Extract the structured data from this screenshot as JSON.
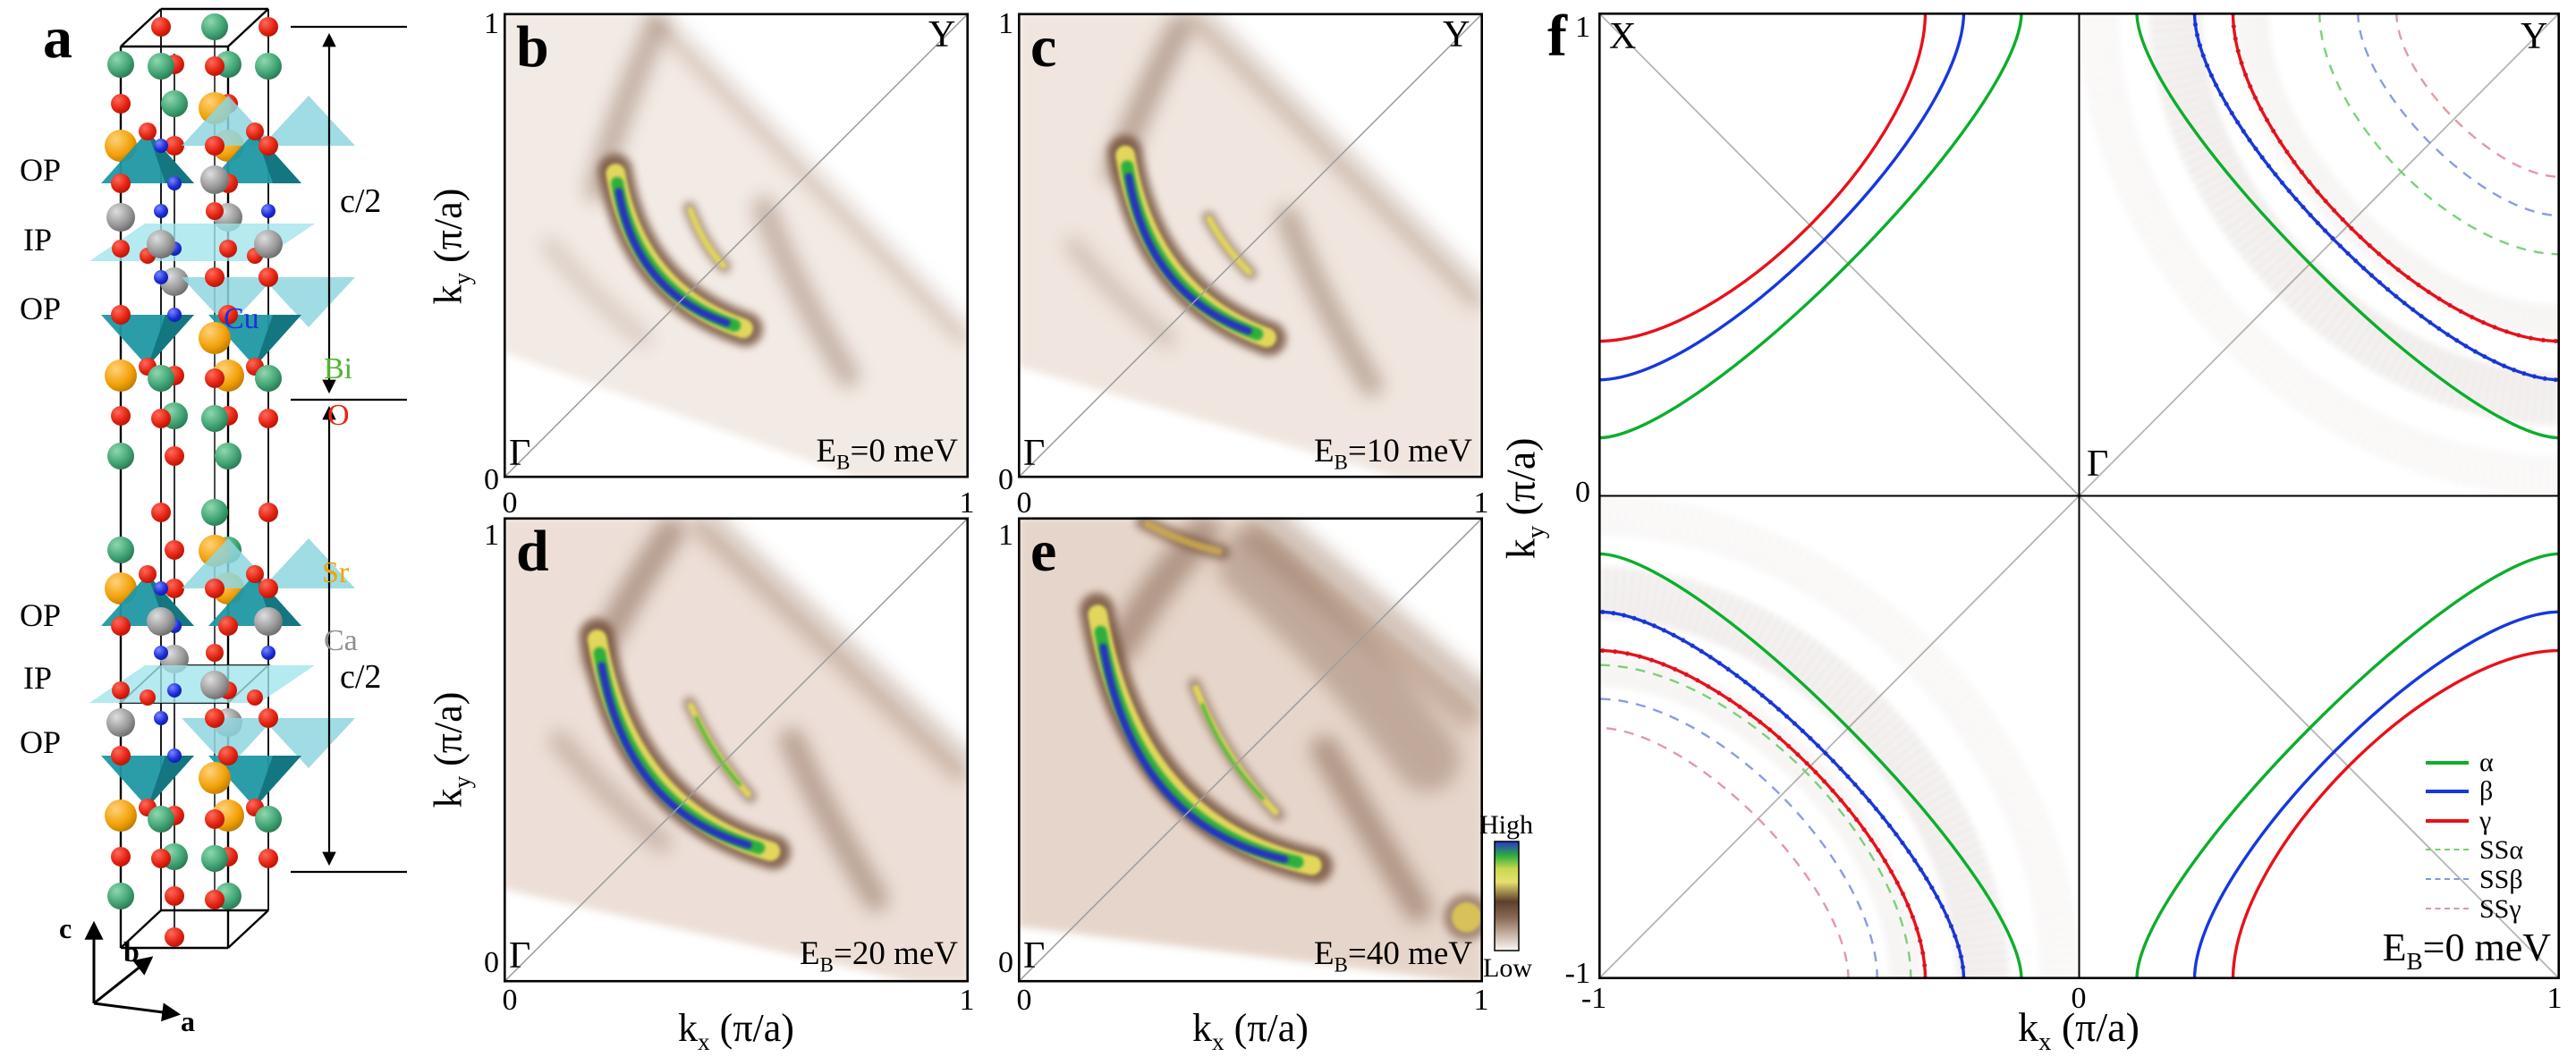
{
  "panel_a": {
    "letter": "a",
    "layer_labels": [
      "OP",
      "IP",
      "OP",
      "OP",
      "IP",
      "OP"
    ],
    "c_half_labels": [
      "c/2",
      "c/2"
    ],
    "axis_labels": [
      "c",
      "b",
      "a"
    ],
    "atom_legend": [
      {
        "symbol": "Cu",
        "color": "#1d2fd9"
      },
      {
        "symbol": "Bi",
        "color": "#4db52e"
      },
      {
        "symbol": "O",
        "color": "#ee2211"
      },
      {
        "symbol": "Sr",
        "color": "#f2a405"
      },
      {
        "symbol": "Ca",
        "color": "#8f8f8f"
      }
    ]
  },
  "axes": {
    "ky_pre": "k",
    "ky_sub": "y",
    "ky_post": " (π/a)",
    "kx_pre": "k",
    "kx_sub": "x",
    "kx_post": " (π/a)"
  },
  "heatmaps": {
    "panels": [
      {
        "letter": "b",
        "gamma": "Γ",
        "corner": "Y",
        "eb_pre": "E",
        "eb_sub": "B",
        "eb_post": "=0 meV",
        "ytick_top": "1",
        "ytick_bottom": "0",
        "xtick_left": "0",
        "xtick_right": "1"
      },
      {
        "letter": "c",
        "gamma": "Γ",
        "corner": "Y",
        "eb_pre": "E",
        "eb_sub": "B",
        "eb_post": "=10 meV",
        "ytick_top": "1",
        "ytick_bottom": "0",
        "xtick_left": "0",
        "xtick_right": "1"
      },
      {
        "letter": "d",
        "gamma": "Γ",
        "eb_pre": "E",
        "eb_sub": "B",
        "eb_post": "=20 meV",
        "ytick_top": "1",
        "ytick_bottom": "0",
        "xtick_left": "0",
        "xtick_right": "1"
      },
      {
        "letter": "e",
        "gamma": "Γ",
        "eb_pre": "E",
        "eb_sub": "B",
        "eb_post": "=40 meV",
        "ytick_top": "1",
        "ytick_bottom": "0",
        "xtick_left": "0",
        "xtick_right": "1"
      }
    ]
  },
  "colorbar": {
    "high": "High",
    "low": "Low",
    "stops": [
      "#2636c8",
      "#2fae3e",
      "#c8d84f",
      "#e8df70",
      "#5d3f2c",
      "#8a6a57",
      "#cbb6a9",
      "#faf7f4"
    ]
  },
  "panel_f": {
    "letter": "f",
    "corner_tl": "X",
    "corner_tr": "Y",
    "center_label": "Γ",
    "eb_pre": "E",
    "eb_sub": "B",
    "eb_post": "=0 meV",
    "ytick_top": "1",
    "ytick_mid": "0",
    "ytick_bottom": "-1",
    "xtick_left": "-1",
    "xtick_mid": "0",
    "xtick_right": "1",
    "legend": [
      {
        "label": "α",
        "color": "#0cae2c",
        "style": "solid"
      },
      {
        "label": "β",
        "color": "#1638dd",
        "style": "solid"
      },
      {
        "label": "γ",
        "color": "#e81119",
        "style": "solid"
      },
      {
        "label": "SSα",
        "color": "#74cf74",
        "style": "dashed"
      },
      {
        "label": "SSβ",
        "color": "#8496e4",
        "style": "dashed"
      },
      {
        "label": "SSγ",
        "color": "#e492a2",
        "style": "dashed"
      }
    ]
  },
  "chart_data": {
    "heatmap_panels": [
      {
        "type": "heatmap",
        "panel": "b",
        "binding_energy_meV": 0,
        "x_range": [
          0,
          1
        ],
        "y_range": [
          0,
          1
        ],
        "colormap": "white-brown-yellow-green-blue",
        "high_corner": "Y",
        "low_corner": "Γ",
        "swath": {
          "u_top": 0.32,
          "v_right": 0.7,
          "u_bottom": 0.76,
          "v_left": 0.73,
          "base_color": "#f2eae4",
          "wash_width": 0.045,
          "wash_opacity": 0.35
        },
        "main_arc": {
          "from": [
            0.24,
            0.66
          ],
          "to": [
            0.52,
            0.32
          ],
          "ctrl": [
            0.285,
            0.4
          ]
        },
        "inner_arc": {
          "from": [
            0.4,
            0.58
          ],
          "to": [
            0.475,
            0.455
          ],
          "ctrl": [
            0.43,
            0.5
          ],
          "core": false
        },
        "streaks": [
          {
            "from": [
              0.33,
              0.97
            ],
            "ctrl": [
              0.25,
              0.8
            ],
            "to": [
              0.2,
              0.62
            ],
            "width": 0.05,
            "opacity": 0.4
          },
          {
            "from": [
              0.56,
              0.58
            ],
            "ctrl": [
              0.62,
              0.42
            ],
            "to": [
              0.74,
              0.22
            ],
            "width": 0.05,
            "opacity": 0.38
          },
          {
            "from": [
              0.1,
              0.5
            ],
            "ctrl": [
              0.18,
              0.4
            ],
            "to": [
              0.3,
              0.3
            ],
            "width": 0.035,
            "opacity": 0.22
          }
        ]
      },
      {
        "type": "heatmap",
        "panel": "c",
        "binding_energy_meV": 10,
        "x_range": [
          0,
          1
        ],
        "y_range": [
          0,
          1
        ],
        "colormap": "white-brown-yellow-green-blue",
        "high_corner": "Y",
        "low_corner": "Γ",
        "swath": {
          "u_top": 0.38,
          "v_right": 0.62,
          "u_bottom": 0.82,
          "v_left": 0.76,
          "base_color": "#f0e6df",
          "wash_width": 0.06,
          "wash_opacity": 0.4
        },
        "main_arc": {
          "from": [
            0.23,
            0.7
          ],
          "to": [
            0.54,
            0.3
          ],
          "ctrl": [
            0.28,
            0.395
          ]
        },
        "inner_arc": {
          "from": [
            0.41,
            0.56
          ],
          "to": [
            0.5,
            0.44
          ],
          "ctrl": [
            0.445,
            0.495
          ],
          "core": false
        },
        "streaks": [
          {
            "from": [
              0.35,
              0.97
            ],
            "ctrl": [
              0.27,
              0.82
            ],
            "to": [
              0.21,
              0.66
            ],
            "width": 0.055,
            "opacity": 0.45
          },
          {
            "from": [
              0.58,
              0.56
            ],
            "ctrl": [
              0.64,
              0.4
            ],
            "to": [
              0.76,
              0.2
            ],
            "width": 0.05,
            "opacity": 0.42
          },
          {
            "from": [
              0.12,
              0.5
            ],
            "ctrl": [
              0.2,
              0.4
            ],
            "to": [
              0.32,
              0.3
            ],
            "width": 0.04,
            "opacity": 0.25
          }
        ]
      },
      {
        "type": "heatmap",
        "panel": "d",
        "binding_energy_meV": 20,
        "x_range": [
          0,
          1
        ],
        "y_range": [
          0,
          1
        ],
        "colormap": "white-brown-yellow-green-blue",
        "high_corner": "Y",
        "low_corner": "Γ",
        "swath": {
          "u_top": 0.42,
          "v_right": 0.55,
          "u_bottom": 0.88,
          "v_left": 0.8,
          "base_color": "#eddfd7",
          "wash_width": 0.07,
          "wash_opacity": 0.45
        },
        "main_arc": {
          "from": [
            0.2,
            0.745
          ],
          "to": [
            0.58,
            0.28
          ],
          "ctrl": [
            0.265,
            0.37
          ]
        },
        "inner_arc": {
          "from": [
            0.4,
            0.6
          ],
          "to": [
            0.53,
            0.4
          ],
          "ctrl": [
            0.45,
            0.49
          ],
          "core": true
        },
        "streaks": [
          {
            "from": [
              0.36,
              0.97
            ],
            "ctrl": [
              0.28,
              0.85
            ],
            "to": [
              0.2,
              0.7
            ],
            "width": 0.06,
            "opacity": 0.5
          },
          {
            "from": [
              0.62,
              0.52
            ],
            "ctrl": [
              0.68,
              0.38
            ],
            "to": [
              0.8,
              0.18
            ],
            "width": 0.055,
            "opacity": 0.45
          },
          {
            "from": [
              0.12,
              0.52
            ],
            "ctrl": [
              0.22,
              0.4
            ],
            "to": [
              0.34,
              0.3
            ],
            "width": 0.045,
            "opacity": 0.3
          }
        ]
      },
      {
        "type": "heatmap",
        "panel": "e",
        "binding_energy_meV": 40,
        "x_range": [
          0,
          1
        ],
        "y_range": [
          0,
          1
        ],
        "colormap": "white-brown-yellow-green-blue",
        "high_corner": "Y",
        "low_corner": "Γ",
        "swath": {
          "u_top": 0.5,
          "v_right": 0.42,
          "u_bottom": 0.97,
          "v_left": 0.88,
          "base_color": "#e6d5ca",
          "wash_width": 0.11,
          "wash_opacity": 0.5
        },
        "main_arc": {
          "from": [
            0.17,
            0.8
          ],
          "to": [
            0.64,
            0.25
          ],
          "ctrl": [
            0.25,
            0.335
          ]
        },
        "inner_arc": {
          "from": [
            0.38,
            0.64
          ],
          "to": [
            0.56,
            0.36
          ],
          "ctrl": [
            0.44,
            0.485
          ],
          "core": true
        },
        "blob": [
          0.965,
          0.14
        ],
        "top_arc": {
          "from": [
            0.27,
            0.99
          ],
          "to": [
            0.44,
            0.925
          ],
          "ctrl": [
            0.355,
            0.945
          ]
        },
        "streaks": [
          {
            "from": [
              0.4,
              0.97
            ],
            "ctrl": [
              0.3,
              0.86
            ],
            "to": [
              0.22,
              0.72
            ],
            "width": 0.07,
            "opacity": 0.5
          },
          {
            "from": [
              0.66,
              0.5
            ],
            "ctrl": [
              0.74,
              0.36
            ],
            "to": [
              0.86,
              0.16
            ],
            "width": 0.06,
            "opacity": 0.5
          },
          {
            "from": [
              0.5,
              0.9
            ],
            "ctrl": [
              0.7,
              0.72
            ],
            "to": [
              0.88,
              0.48
            ],
            "width": 0.14,
            "opacity": 0.35
          }
        ]
      }
    ],
    "fermi_surface": {
      "type": "line",
      "panel": "f",
      "binding_energy_meV": 0,
      "x_range": [
        -1,
        1
      ],
      "y_range": [
        -1,
        1
      ],
      "corner_points": {
        "top_left": "X",
        "top_right": "Y",
        "center": "Γ"
      },
      "main_bands": [
        {
          "name": "α",
          "color": "#0cae2c",
          "edge_crossing": 0.88,
          "ctrl": 0.213
        },
        {
          "name": "β",
          "color": "#1638dd",
          "edge_crossing": 0.76,
          "ctrl": 0.24
        },
        {
          "name": "γ",
          "color": "#e81119",
          "edge_crossing": 0.68,
          "ctrl": 0.267
        }
      ],
      "superstructure_bands": {
        "TR": [
          {
            "name": "SSα",
            "color": "#74cf74",
            "edge_crossing": 0.5,
            "ctrl": 0.213
          },
          {
            "name": "SSβ",
            "color": "#8496e4",
            "edge_crossing": 0.42,
            "ctrl": 0.16
          },
          {
            "name": "SSγ",
            "color": "#e492a2",
            "edge_crossing": 0.34,
            "ctrl": 0.133
          }
        ],
        "BL": [
          {
            "name": "SSα",
            "color": "#74cf74",
            "edge_crossing": 0.65,
            "ctrl": 0.28
          },
          {
            "name": "SSβ",
            "color": "#8496e4",
            "edge_crossing": 0.58,
            "ctrl": 0.24
          },
          {
            "name": "SSγ",
            "color": "#e492a2",
            "edge_crossing": 0.52,
            "ctrl": 0.193
          }
        ]
      },
      "experimental_data_quadrants": [
        "TR",
        "BL"
      ]
    }
  }
}
